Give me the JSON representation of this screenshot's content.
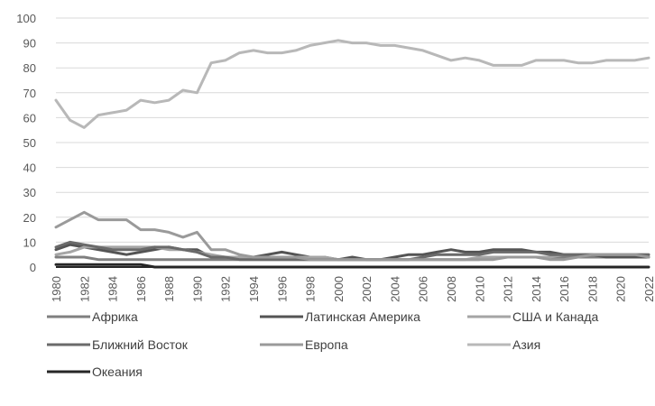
{
  "chart_data": {
    "type": "line",
    "x": [
      1980,
      1981,
      1982,
      1983,
      1984,
      1985,
      1986,
      1987,
      1988,
      1989,
      1990,
      1991,
      1992,
      1993,
      1994,
      1995,
      1996,
      1997,
      1998,
      1999,
      2000,
      2001,
      2002,
      2003,
      2004,
      2005,
      2006,
      2007,
      2008,
      2009,
      2010,
      2011,
      2012,
      2013,
      2014,
      2015,
      2016,
      2017,
      2018,
      2019,
      2020,
      2021,
      2022
    ],
    "x_tick_labels": [
      "1980",
      "1982",
      "1984",
      "1986",
      "1988",
      "1990",
      "1992",
      "1994",
      "1996",
      "1998",
      "2000",
      "2002",
      "2004",
      "2006",
      "2008",
      "2010",
      "2012",
      "2014",
      "2016",
      "2018",
      "2020",
      "2022"
    ],
    "y_tick_labels": [
      "0",
      "10",
      "20",
      "30",
      "40",
      "50",
      "60",
      "70",
      "80",
      "90",
      "100"
    ],
    "ylim": [
      0,
      100
    ],
    "grid": "horizontal",
    "legend_position": "bottom",
    "series": [
      {
        "name": "Африка",
        "color": "#7f7f7f",
        "values": [
          4,
          4,
          4,
          3,
          3,
          3,
          3,
          3,
          3,
          3,
          3,
          3,
          3,
          3,
          3,
          3,
          3,
          3,
          3,
          3,
          3,
          3,
          3,
          3,
          3,
          3,
          3,
          3,
          3,
          3,
          3,
          4,
          4,
          4,
          4,
          4,
          4,
          4,
          4,
          4,
          4,
          4,
          4
        ]
      },
      {
        "name": "Латинская Америка",
        "color": "#545454",
        "values": [
          7,
          9,
          8,
          7,
          6,
          5,
          6,
          7,
          8,
          7,
          7,
          4,
          4,
          4,
          4,
          5,
          6,
          5,
          4,
          4,
          3,
          4,
          3,
          3,
          4,
          5,
          5,
          6,
          7,
          6,
          6,
          7,
          7,
          7,
          6,
          6,
          5,
          5,
          5,
          4,
          4,
          4,
          4
        ]
      },
      {
        "name": "США и Канада",
        "color": "#a5a5a5",
        "values": [
          5,
          6,
          8,
          8,
          8,
          8,
          8,
          8,
          7,
          7,
          6,
          5,
          4,
          4,
          4,
          4,
          4,
          4,
          4,
          4,
          3,
          3,
          3,
          3,
          3,
          3,
          3,
          3,
          3,
          3,
          4,
          4,
          4,
          4,
          4,
          4,
          5,
          5,
          5,
          5,
          5,
          5,
          5
        ]
      },
      {
        "name": "Ближний Восток",
        "color": "#6a6a6a",
        "values": [
          8,
          10,
          9,
          8,
          7,
          7,
          7,
          8,
          8,
          7,
          6,
          4,
          4,
          3,
          3,
          3,
          3,
          3,
          3,
          3,
          3,
          3,
          3,
          3,
          3,
          3,
          4,
          5,
          5,
          5,
          5,
          6,
          6,
          6,
          6,
          5,
          5,
          5,
          5,
          5,
          5,
          5,
          5
        ]
      },
      {
        "name": "Европа",
        "color": "#9a9a9a",
        "values": [
          16,
          19,
          22,
          19,
          19,
          19,
          15,
          15,
          14,
          12,
          14,
          7,
          7,
          5,
          4,
          4,
          4,
          4,
          3,
          3,
          3,
          3,
          3,
          3,
          3,
          3,
          3,
          3,
          3,
          3,
          3,
          3,
          4,
          4,
          4,
          3,
          3,
          4,
          5,
          5,
          5,
          5,
          4
        ]
      },
      {
        "name": "Азия",
        "color": "#b8b8b8",
        "values": [
          67,
          59,
          56,
          61,
          62,
          63,
          67,
          66,
          67,
          71,
          70,
          82,
          83,
          86,
          87,
          86,
          86,
          87,
          89,
          90,
          91,
          90,
          90,
          89,
          89,
          88,
          87,
          85,
          83,
          84,
          83,
          81,
          81,
          81,
          83,
          83,
          83,
          82,
          82,
          83,
          83,
          83,
          84
        ]
      },
      {
        "name": "Океания",
        "color": "#262626",
        "values": [
          1,
          1,
          1,
          1,
          1,
          1,
          1,
          0,
          0,
          0,
          0,
          0,
          0,
          0,
          0,
          0,
          0,
          0,
          0,
          0,
          0,
          0,
          0,
          0,
          0,
          0,
          0,
          0,
          0,
          0,
          0,
          0,
          0,
          0,
          0,
          0,
          0,
          0,
          0,
          0,
          0,
          0,
          0
        ]
      }
    ]
  }
}
